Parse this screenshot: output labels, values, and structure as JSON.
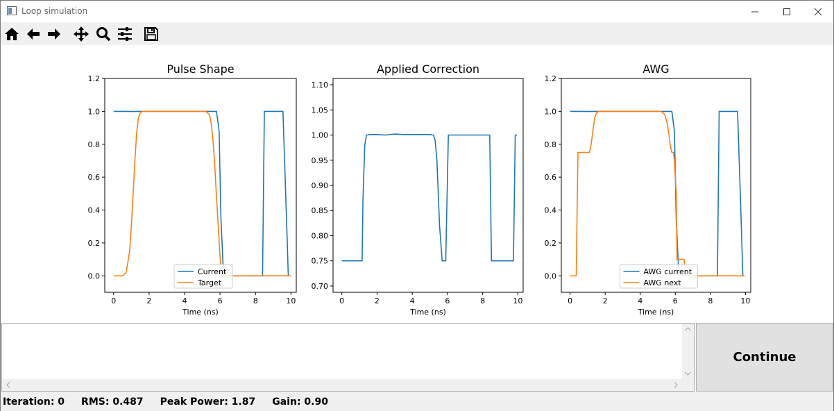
{
  "window": {
    "title": "Loop simulation"
  },
  "toolbar": {
    "tools": [
      "home-icon",
      "back-arrow-icon",
      "forward-arrow-icon",
      "pan-icon",
      "zoom-icon",
      "configure-subplots-icon",
      "save-icon"
    ]
  },
  "colors": {
    "current": "#1f77b4",
    "target": "#ff7f0e"
  },
  "chart_data": [
    {
      "type": "line",
      "title": "Pulse Shape",
      "xlabel": "Time (ns)",
      "ylabel": "",
      "xlim": [
        -0.5,
        10.3
      ],
      "ylim": [
        -0.1,
        1.2
      ],
      "xticks": [
        "0",
        "2",
        "4",
        "6",
        "8",
        "10"
      ],
      "yticks": [
        "0.0",
        "0.2",
        "0.4",
        "0.6",
        "0.8",
        "1.0",
        "1.2"
      ],
      "legend": "lower-center",
      "series": [
        {
          "name": "Current",
          "color": "#1f77b4",
          "x": [
            0,
            0.5,
            1,
            1.5,
            2,
            3,
            4,
            5,
            5.8,
            5.95,
            6.05,
            6.2,
            7,
            8,
            8.4,
            8.5,
            9,
            9.55,
            9.75,
            9.85
          ],
          "y": [
            1.0,
            1.0,
            0.999,
            1.0,
            1.0,
            1.0,
            1.0,
            1.0,
            1.0,
            0.88,
            0.35,
            0.0,
            0.0,
            0.0,
            0.0,
            1.0,
            1.0,
            1.0,
            0.35,
            0.0
          ]
        },
        {
          "name": "Target",
          "color": "#ff7f0e",
          "x": [
            0,
            0.5,
            0.7,
            0.8,
            0.9,
            1.0,
            1.1,
            1.2,
            1.3,
            1.4,
            1.5,
            1.6,
            2,
            3,
            4,
            5,
            5.2,
            5.4,
            5.5,
            5.6,
            5.7,
            5.8,
            5.9,
            6.0,
            6.1,
            7,
            8,
            9,
            10
          ],
          "y": [
            0.0,
            0.0,
            0.02,
            0.08,
            0.15,
            0.3,
            0.5,
            0.7,
            0.87,
            0.96,
            0.99,
            1.0,
            1.0,
            1.0,
            1.0,
            1.0,
            1.0,
            0.98,
            0.93,
            0.83,
            0.68,
            0.48,
            0.3,
            0.12,
            0.0,
            0.0,
            0.0,
            0.0,
            0.0
          ]
        }
      ]
    },
    {
      "type": "line",
      "title": "Applied Correction",
      "xlabel": "Time (ns)",
      "ylabel": "",
      "xlim": [
        -0.5,
        10.3
      ],
      "ylim": [
        0.6875,
        1.1125
      ],
      "xticks": [
        "0",
        "2",
        "4",
        "6",
        "8",
        "10"
      ],
      "yticks": [
        "0.70",
        "0.75",
        "0.80",
        "0.85",
        "0.90",
        "0.95",
        "1.00",
        "1.05",
        "1.10"
      ],
      "series": [
        {
          "name": "",
          "color": "#1f77b4",
          "x": [
            0,
            1.1,
            1.15,
            1.2,
            1.3,
            1.4,
            1.6,
            2,
            2.5,
            3,
            3.5,
            4,
            4.5,
            5,
            5.2,
            5.3,
            5.4,
            5.55,
            5.7,
            5.75,
            5.85,
            5.9,
            6.05,
            6.1,
            7,
            8.3,
            8.4,
            8.5,
            9,
            9.7,
            9.75,
            9.85,
            9.95
          ],
          "y": [
            0.75,
            0.75,
            0.75,
            0.87,
            0.98,
            1.0,
            1.001,
            1.001,
            1.0,
            1.002,
            1.001,
            1.001,
            1.001,
            1.001,
            1.0,
            0.99,
            0.95,
            0.82,
            0.75,
            0.75,
            0.75,
            0.75,
            1.0,
            1.0,
            1.0,
            1.0,
            1.0,
            0.75,
            0.75,
            0.75,
            0.75,
            1.0,
            1.0
          ]
        }
      ]
    },
    {
      "type": "line",
      "title": "AWG",
      "xlabel": "Time (ns)",
      "ylabel": "",
      "xlim": [
        -0.5,
        10.3
      ],
      "ylim": [
        -0.1,
        1.2
      ],
      "xticks": [
        "0",
        "2",
        "4",
        "6",
        "8",
        "10"
      ],
      "yticks": [
        "0.0",
        "0.2",
        "0.4",
        "0.6",
        "0.8",
        "1.0",
        "1.2"
      ],
      "legend": "lower-center",
      "series": [
        {
          "name": "AWG current",
          "color": "#1f77b4",
          "x": [
            0,
            0.5,
            1,
            1.5,
            2,
            3,
            4,
            5,
            5.8,
            5.95,
            6.05,
            6.2,
            7,
            8,
            8.4,
            8.5,
            9,
            9.55,
            9.75,
            9.85
          ],
          "y": [
            1.0,
            1.0,
            0.999,
            1.0,
            1.0,
            1.0,
            1.0,
            1.0,
            1.0,
            0.88,
            0.35,
            0.0,
            0.0,
            0.0,
            0.0,
            1.0,
            1.0,
            1.0,
            0.35,
            0.0
          ]
        },
        {
          "name": "AWG next",
          "color": "#ff7f0e",
          "x": [
            0,
            0.35,
            0.4,
            0.45,
            0.5,
            1.1,
            1.2,
            1.3,
            1.4,
            1.5,
            1.6,
            2,
            3,
            4,
            5,
            5.2,
            5.4,
            5.55,
            5.65,
            5.7,
            5.8,
            5.9,
            5.95,
            6.05,
            6.1,
            6.15,
            6.5,
            6.55,
            6.6,
            7,
            8,
            9,
            9.95
          ],
          "y": [
            0.0,
            0.0,
            0.4,
            0.75,
            0.75,
            0.75,
            0.8,
            0.88,
            0.96,
            0.99,
            1.0,
            1.0,
            1.0,
            1.0,
            1.0,
            1.0,
            0.98,
            0.92,
            0.85,
            0.8,
            0.75,
            0.75,
            0.7,
            0.5,
            0.1,
            0.1,
            0.1,
            0.05,
            0.0,
            0.0,
            0.0,
            0.0,
            0.0
          ]
        }
      ]
    }
  ],
  "continue_button": {
    "label": "Continue"
  },
  "status": {
    "iteration": "Iteration: 0",
    "rms": "RMS: 0.487",
    "peak_power": "Peak Power: 1.87",
    "gain": "Gain: 0.90"
  }
}
